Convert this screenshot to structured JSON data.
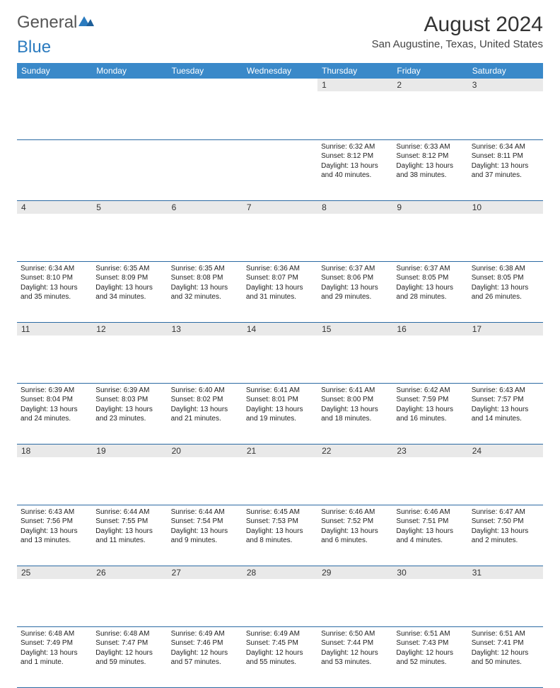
{
  "logo": {
    "part1": "General",
    "part2": "Blue"
  },
  "header": {
    "month_title": "August 2024",
    "location": "San Augustine, Texas, United States"
  },
  "colors": {
    "header_bg": "#3a89c9",
    "header_text": "#ffffff",
    "row_divider": "#2b6aa3",
    "daynum_bg": "#e9e9e9",
    "logo_grey": "#555555",
    "logo_blue": "#2b7bbf"
  },
  "day_names": [
    "Sunday",
    "Monday",
    "Tuesday",
    "Wednesday",
    "Thursday",
    "Friday",
    "Saturday"
  ],
  "weeks": [
    [
      null,
      null,
      null,
      null,
      {
        "n": "1",
        "sr": "6:32 AM",
        "ss": "8:12 PM",
        "dl": "13 hours and 40 minutes."
      },
      {
        "n": "2",
        "sr": "6:33 AM",
        "ss": "8:12 PM",
        "dl": "13 hours and 38 minutes."
      },
      {
        "n": "3",
        "sr": "6:34 AM",
        "ss": "8:11 PM",
        "dl": "13 hours and 37 minutes."
      }
    ],
    [
      {
        "n": "4",
        "sr": "6:34 AM",
        "ss": "8:10 PM",
        "dl": "13 hours and 35 minutes."
      },
      {
        "n": "5",
        "sr": "6:35 AM",
        "ss": "8:09 PM",
        "dl": "13 hours and 34 minutes."
      },
      {
        "n": "6",
        "sr": "6:35 AM",
        "ss": "8:08 PM",
        "dl": "13 hours and 32 minutes."
      },
      {
        "n": "7",
        "sr": "6:36 AM",
        "ss": "8:07 PM",
        "dl": "13 hours and 31 minutes."
      },
      {
        "n": "8",
        "sr": "6:37 AM",
        "ss": "8:06 PM",
        "dl": "13 hours and 29 minutes."
      },
      {
        "n": "9",
        "sr": "6:37 AM",
        "ss": "8:05 PM",
        "dl": "13 hours and 28 minutes."
      },
      {
        "n": "10",
        "sr": "6:38 AM",
        "ss": "8:05 PM",
        "dl": "13 hours and 26 minutes."
      }
    ],
    [
      {
        "n": "11",
        "sr": "6:39 AM",
        "ss": "8:04 PM",
        "dl": "13 hours and 24 minutes."
      },
      {
        "n": "12",
        "sr": "6:39 AM",
        "ss": "8:03 PM",
        "dl": "13 hours and 23 minutes."
      },
      {
        "n": "13",
        "sr": "6:40 AM",
        "ss": "8:02 PM",
        "dl": "13 hours and 21 minutes."
      },
      {
        "n": "14",
        "sr": "6:41 AM",
        "ss": "8:01 PM",
        "dl": "13 hours and 19 minutes."
      },
      {
        "n": "15",
        "sr": "6:41 AM",
        "ss": "8:00 PM",
        "dl": "13 hours and 18 minutes."
      },
      {
        "n": "16",
        "sr": "6:42 AM",
        "ss": "7:59 PM",
        "dl": "13 hours and 16 minutes."
      },
      {
        "n": "17",
        "sr": "6:43 AM",
        "ss": "7:57 PM",
        "dl": "13 hours and 14 minutes."
      }
    ],
    [
      {
        "n": "18",
        "sr": "6:43 AM",
        "ss": "7:56 PM",
        "dl": "13 hours and 13 minutes."
      },
      {
        "n": "19",
        "sr": "6:44 AM",
        "ss": "7:55 PM",
        "dl": "13 hours and 11 minutes."
      },
      {
        "n": "20",
        "sr": "6:44 AM",
        "ss": "7:54 PM",
        "dl": "13 hours and 9 minutes."
      },
      {
        "n": "21",
        "sr": "6:45 AM",
        "ss": "7:53 PM",
        "dl": "13 hours and 8 minutes."
      },
      {
        "n": "22",
        "sr": "6:46 AM",
        "ss": "7:52 PM",
        "dl": "13 hours and 6 minutes."
      },
      {
        "n": "23",
        "sr": "6:46 AM",
        "ss": "7:51 PM",
        "dl": "13 hours and 4 minutes."
      },
      {
        "n": "24",
        "sr": "6:47 AM",
        "ss": "7:50 PM",
        "dl": "13 hours and 2 minutes."
      }
    ],
    [
      {
        "n": "25",
        "sr": "6:48 AM",
        "ss": "7:49 PM",
        "dl": "13 hours and 1 minute."
      },
      {
        "n": "26",
        "sr": "6:48 AM",
        "ss": "7:47 PM",
        "dl": "12 hours and 59 minutes."
      },
      {
        "n": "27",
        "sr": "6:49 AM",
        "ss": "7:46 PM",
        "dl": "12 hours and 57 minutes."
      },
      {
        "n": "28",
        "sr": "6:49 AM",
        "ss": "7:45 PM",
        "dl": "12 hours and 55 minutes."
      },
      {
        "n": "29",
        "sr": "6:50 AM",
        "ss": "7:44 PM",
        "dl": "12 hours and 53 minutes."
      },
      {
        "n": "30",
        "sr": "6:51 AM",
        "ss": "7:43 PM",
        "dl": "12 hours and 52 minutes."
      },
      {
        "n": "31",
        "sr": "6:51 AM",
        "ss": "7:41 PM",
        "dl": "12 hours and 50 minutes."
      }
    ]
  ],
  "labels": {
    "sunrise": "Sunrise: ",
    "sunset": "Sunset: ",
    "daylight": "Daylight: "
  }
}
